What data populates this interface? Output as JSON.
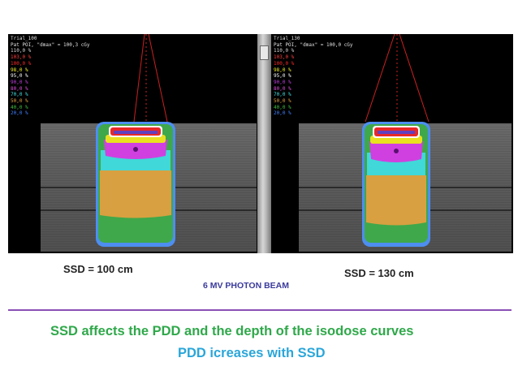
{
  "left_panel": {
    "trial_name": "Trial_100",
    "poi_label": "Pat POI, \"dmax\" = 100,3 cGy",
    "legend": [
      {
        "label": "110,0 %",
        "color": "#d8d8d8"
      },
      {
        "label": "103,0 %",
        "color": "#ff4040"
      },
      {
        "label": "100,0 %",
        "color": "#ff2a2a"
      },
      {
        "label": "98,0 %",
        "color": "#f2f02a"
      },
      {
        "label": "95,0 %",
        "color": "#ffffff"
      },
      {
        "label": "90,0 %",
        "color": "#c040e0"
      },
      {
        "label": "80,0 %",
        "color": "#e050e0"
      },
      {
        "label": "70,0 %",
        "color": "#40e0e0"
      },
      {
        "label": "50,0 %",
        "color": "#e0a040"
      },
      {
        "label": "40,0 %",
        "color": "#40c040"
      },
      {
        "label": "20,0 %",
        "color": "#4080ff"
      }
    ]
  },
  "right_panel": {
    "trial_name": "Trial_130",
    "poi_label": "Pat POI, \"dmax\" = 100,0 cGy",
    "legend": [
      {
        "label": "110,0 %",
        "color": "#d8d8d8"
      },
      {
        "label": "103,0 %",
        "color": "#ff4040"
      },
      {
        "label": "100,0 %",
        "color": "#ff2a2a"
      },
      {
        "label": "98,0 %",
        "color": "#f2f02a"
      },
      {
        "label": "95,0 %",
        "color": "#ffffff"
      },
      {
        "label": "90,0 %",
        "color": "#c040e0"
      },
      {
        "label": "80,0 %",
        "color": "#e050e0"
      },
      {
        "label": "70,0 %",
        "color": "#40e0e0"
      },
      {
        "label": "50,0 %",
        "color": "#e0a040"
      },
      {
        "label": "40,0 %",
        "color": "#40c040"
      },
      {
        "label": "20,0 %",
        "color": "#4080ff"
      }
    ]
  },
  "captions": {
    "left": "SSD = 100 cm",
    "right": "SSD = 130 cm",
    "beam": "6 MV PHOTON BEAM"
  },
  "text": {
    "line1": "SSD affects the PDD and the depth of the isodose curves",
    "line2": "PDD icreases with SSD"
  },
  "colors": {
    "line1": "#2fa84a",
    "line2": "#2aa6d9",
    "rule": "#8a4fb5",
    "beam_label": "#3a3a9c"
  }
}
